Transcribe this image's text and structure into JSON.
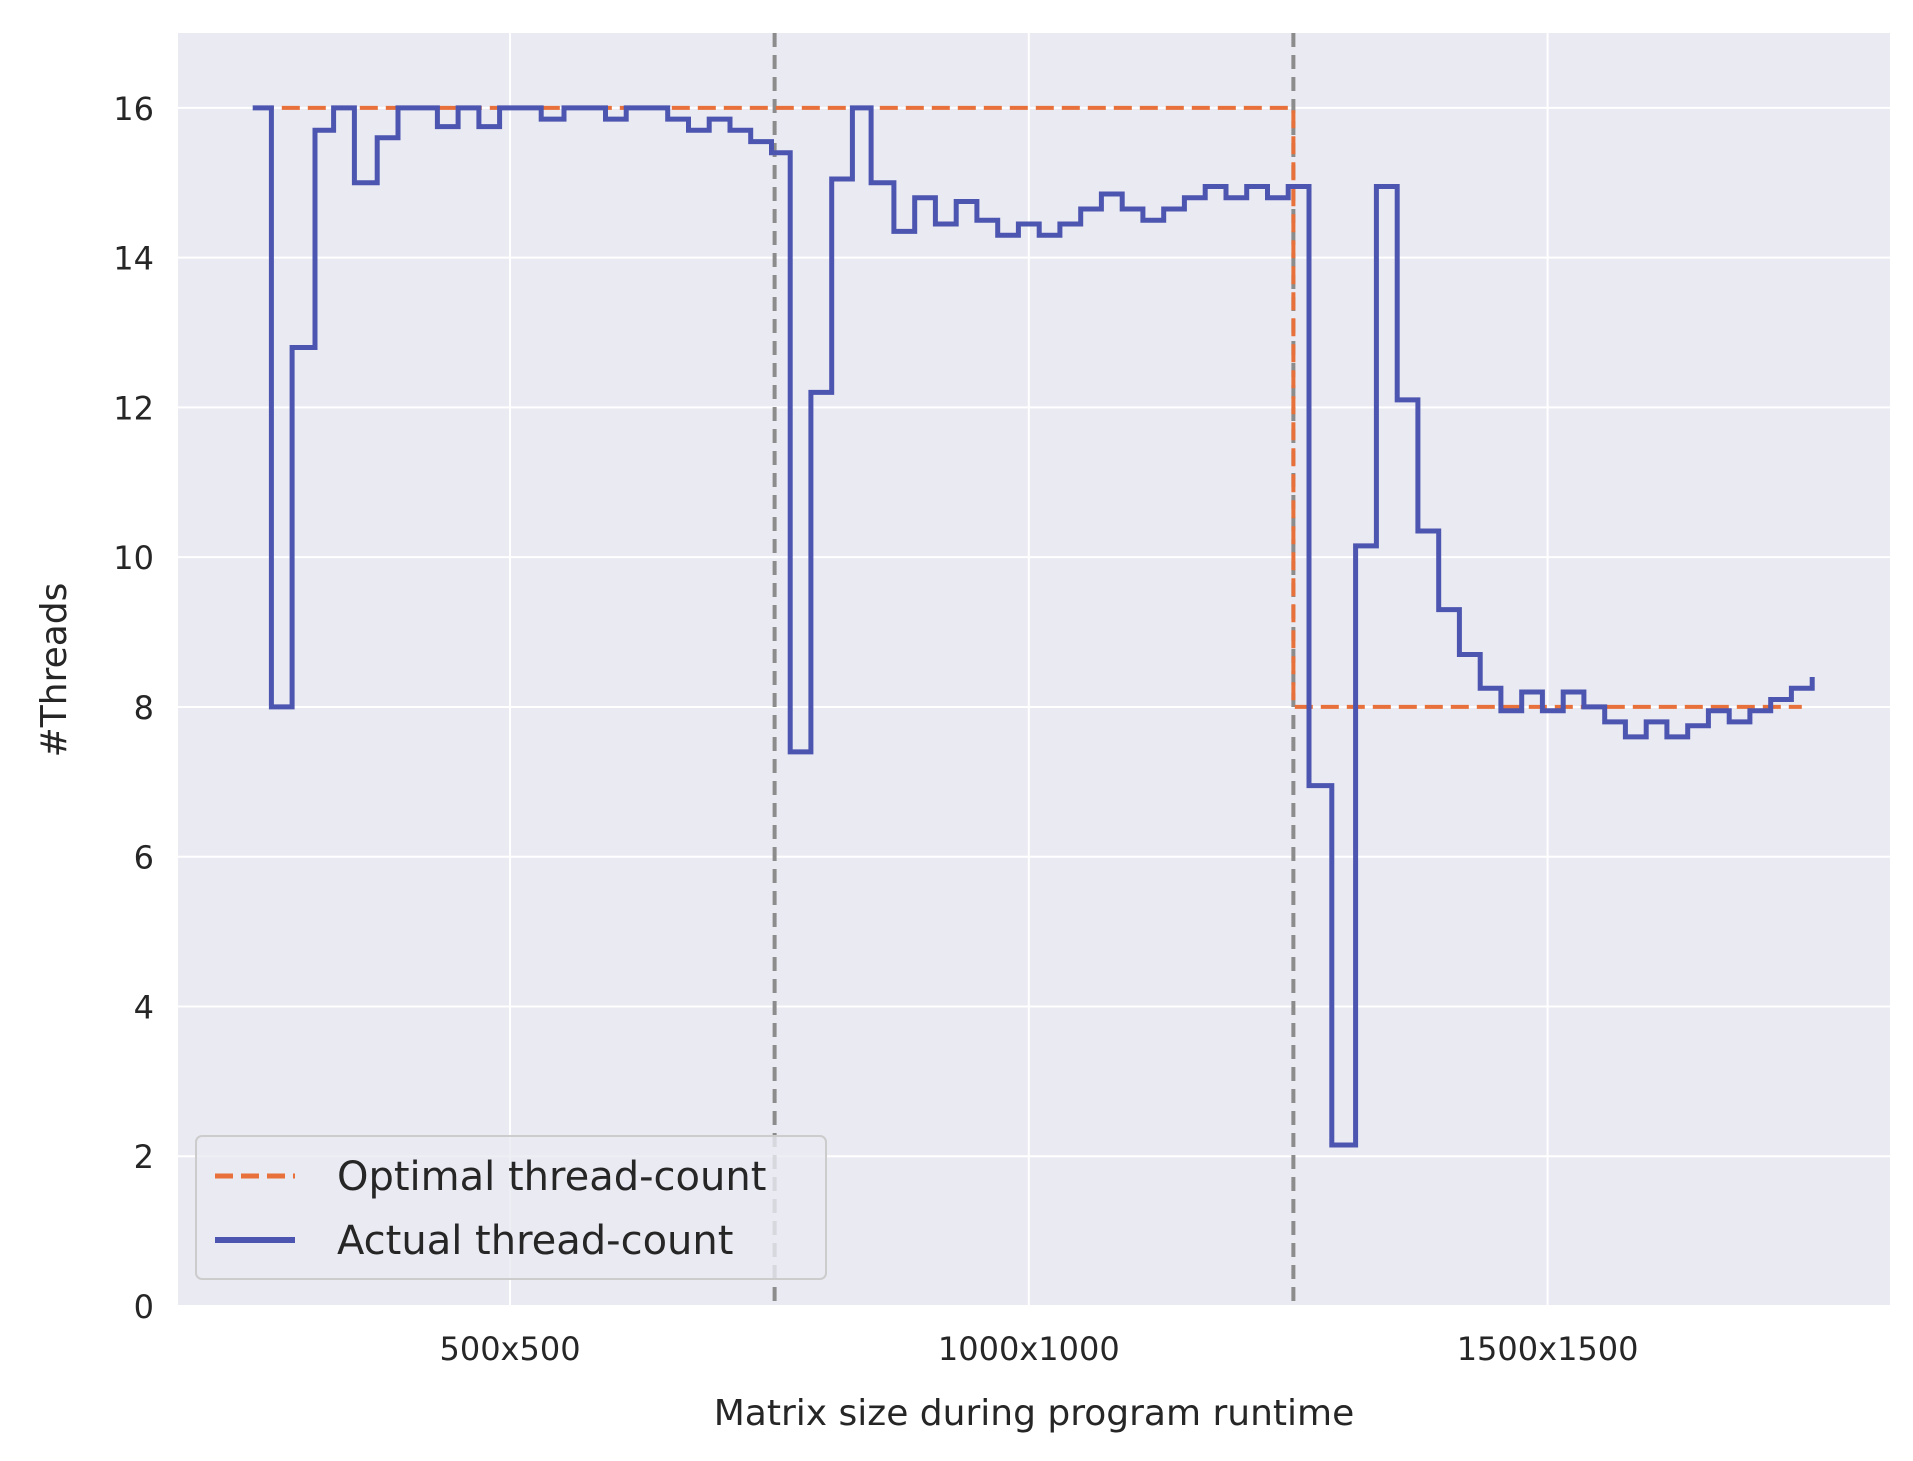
{
  "chart_data": {
    "type": "line",
    "xlabel": "Matrix size during program runtime",
    "ylabel": "#Threads",
    "xlim": [
      0,
      1650
    ],
    "ylim": [
      0,
      17
    ],
    "x_ticks": [
      {
        "value": 320,
        "label": "500x500"
      },
      {
        "value": 820,
        "label": "1000x1000"
      },
      {
        "value": 1320,
        "label": "1500x1500"
      }
    ],
    "y_ticks": [
      0,
      2,
      4,
      6,
      8,
      10,
      12,
      14,
      16
    ],
    "grid": true,
    "legend_position": "lower-left",
    "vlines": [
      575,
      1075
    ],
    "series": [
      {
        "name": "Optimal thread-count",
        "style": "dashed",
        "color": "#e8703a",
        "points": [
          [
            75,
            16
          ],
          [
            1075,
            16
          ],
          [
            1075,
            8
          ],
          [
            1565,
            8
          ]
        ]
      },
      {
        "name": "Actual thread-count",
        "style": "solid",
        "color": "#4c55b0",
        "step": true,
        "points": [
          [
            72,
            16
          ],
          [
            90,
            8
          ],
          [
            110,
            12.8
          ],
          [
            132,
            15.7
          ],
          [
            150,
            16
          ],
          [
            170,
            15
          ],
          [
            192,
            15.6
          ],
          [
            212,
            16
          ],
          [
            250,
            15.75
          ],
          [
            270,
            16
          ],
          [
            290,
            15.75
          ],
          [
            310,
            16
          ],
          [
            330,
            16
          ],
          [
            350,
            15.85
          ],
          [
            372,
            16
          ],
          [
            412,
            15.85
          ],
          [
            432,
            16
          ],
          [
            472,
            15.85
          ],
          [
            492,
            15.7
          ],
          [
            512,
            15.85
          ],
          [
            532,
            15.7
          ],
          [
            552,
            15.55
          ],
          [
            572,
            15.4
          ],
          [
            590,
            7.4
          ],
          [
            610,
            12.2
          ],
          [
            630,
            15.05
          ],
          [
            650,
            16
          ],
          [
            668,
            15
          ],
          [
            690,
            14.35
          ],
          [
            710,
            14.8
          ],
          [
            730,
            14.45
          ],
          [
            750,
            14.75
          ],
          [
            770,
            14.5
          ],
          [
            790,
            14.3
          ],
          [
            810,
            14.45
          ],
          [
            830,
            14.3
          ],
          [
            850,
            14.45
          ],
          [
            870,
            14.65
          ],
          [
            890,
            14.85
          ],
          [
            910,
            14.65
          ],
          [
            930,
            14.5
          ],
          [
            950,
            14.65
          ],
          [
            970,
            14.8
          ],
          [
            990,
            14.95
          ],
          [
            1010,
            14.8
          ],
          [
            1030,
            14.95
          ],
          [
            1050,
            14.8
          ],
          [
            1070,
            14.95
          ],
          [
            1090,
            6.95
          ],
          [
            1112,
            2.15
          ],
          [
            1135,
            10.15
          ],
          [
            1155,
            14.95
          ],
          [
            1175,
            12.1
          ],
          [
            1195,
            10.35
          ],
          [
            1215,
            9.3
          ],
          [
            1235,
            8.7
          ],
          [
            1255,
            8.25
          ],
          [
            1275,
            7.95
          ],
          [
            1295,
            8.2
          ],
          [
            1315,
            7.95
          ],
          [
            1335,
            8.2
          ],
          [
            1355,
            8
          ],
          [
            1375,
            7.8
          ],
          [
            1395,
            7.6
          ],
          [
            1415,
            7.8
          ],
          [
            1435,
            7.6
          ],
          [
            1455,
            7.75
          ],
          [
            1475,
            7.95
          ],
          [
            1495,
            7.8
          ],
          [
            1515,
            7.95
          ],
          [
            1535,
            8.1
          ],
          [
            1555,
            8.25
          ],
          [
            1575,
            8.4
          ]
        ]
      }
    ]
  },
  "colors": {
    "plot_background": "#eaeaf2",
    "grid": "#ffffff",
    "vline": "#8c8c8c",
    "text": "#262626"
  }
}
